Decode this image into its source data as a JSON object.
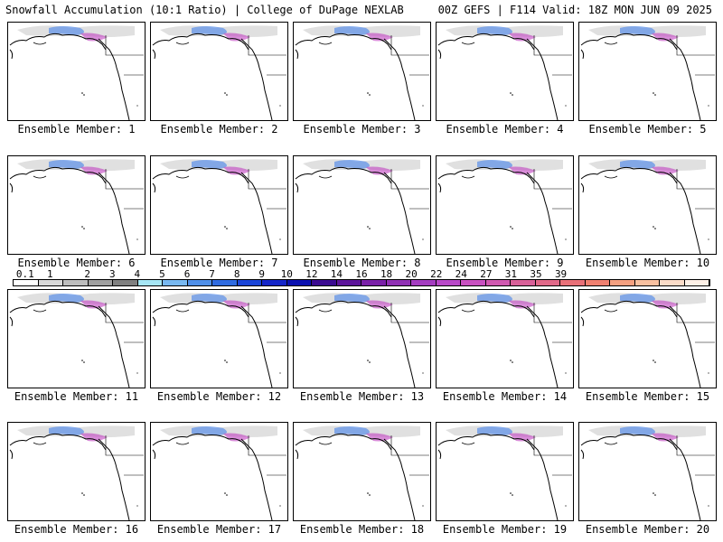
{
  "header": {
    "left": "Snowfall Accumulation (10:1 Ratio) | College of DuPage NEXLAB",
    "right": "00Z GEFS | F114 Valid: 18Z MON JUN 09 2025"
  },
  "panels": [
    {
      "label": "Ensemble Member: 1"
    },
    {
      "label": "Ensemble Member: 2"
    },
    {
      "label": "Ensemble Member: 3"
    },
    {
      "label": "Ensemble Member: 4"
    },
    {
      "label": "Ensemble Member: 5"
    },
    {
      "label": "Ensemble Member: 6"
    },
    {
      "label": "Ensemble Member: 7"
    },
    {
      "label": "Ensemble Member: 8"
    },
    {
      "label": "Ensemble Member: 9"
    },
    {
      "label": "Ensemble Member: 10"
    },
    {
      "label": "Ensemble Member: 11"
    },
    {
      "label": "Ensemble Member: 12"
    },
    {
      "label": "Ensemble Member: 13"
    },
    {
      "label": "Ensemble Member: 14"
    },
    {
      "label": "Ensemble Member: 15"
    },
    {
      "label": "Ensemble Member: 16"
    },
    {
      "label": "Ensemble Member: 17"
    },
    {
      "label": "Ensemble Member: 18"
    },
    {
      "label": "Ensemble Member: 19"
    },
    {
      "label": "Ensemble Member: 20"
    }
  ],
  "colorbar": {
    "labels": [
      "0.1",
      "1",
      "2",
      "3",
      "4",
      "5",
      "6",
      "7",
      "8",
      "9",
      "10",
      "12",
      "14",
      "16",
      "18",
      "20",
      "22",
      "24",
      "27",
      "31",
      "35",
      "39"
    ],
    "colors": [
      "#ffffff",
      "#d9d9d9",
      "#bdbdbd",
      "#a0a0a0",
      "#808080",
      "#a6e6f5",
      "#78b8f0",
      "#4f8fe8",
      "#2f6be0",
      "#1a45d8",
      "#1425c8",
      "#0a10b0",
      "#3a0a90",
      "#5c149a",
      "#7a20a8",
      "#9030b4",
      "#a43cc0",
      "#b848c8",
      "#c850c0",
      "#d058b0",
      "#d86098",
      "#e06888",
      "#e87078",
      "#f08070",
      "#f5a080",
      "#f8c0a0",
      "#fbdcc8",
      "#fdf0e6"
    ]
  }
}
